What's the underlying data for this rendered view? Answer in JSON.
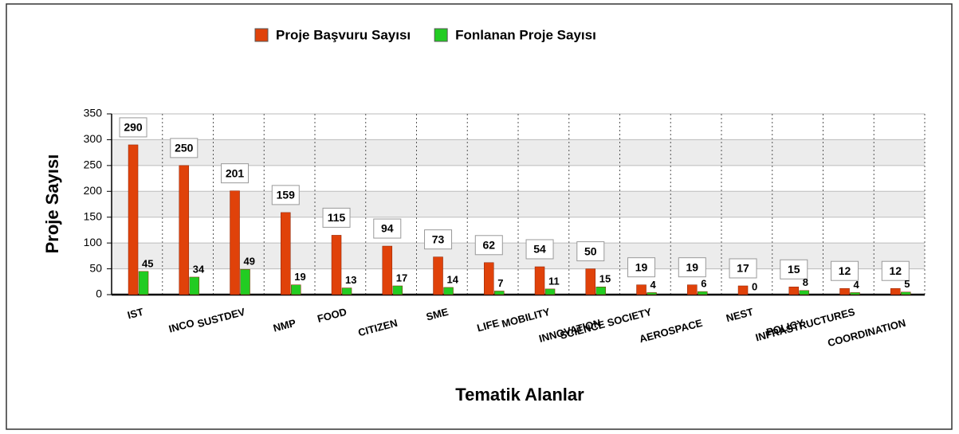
{
  "chart_data": {
    "type": "bar",
    "categories": [
      "IST",
      "INCO",
      "SUSTDEV",
      "NMP",
      "FOOD",
      "CITIZEN",
      "SME",
      "LIFE",
      "MOBILITY",
      "INNOVATION",
      "SCIENCE SOCIETY",
      "AEROSPACE",
      "NEST",
      "POLICY",
      "INFRASTRUCTURES",
      "COORDINATION"
    ],
    "series": [
      {
        "name": "Proje Başvuru Sayısı",
        "color": "#e0420a",
        "values": [
          290,
          250,
          201,
          159,
          115,
          94,
          73,
          62,
          54,
          50,
          19,
          19,
          17,
          15,
          12,
          12
        ]
      },
      {
        "name": "Fonlanan Proje Sayısı",
        "color": "#22cc22",
        "values": [
          45,
          34,
          49,
          19,
          13,
          17,
          14,
          7,
          11,
          15,
          4,
          6,
          0,
          8,
          4,
          5
        ]
      }
    ],
    "y_label": "Proje Sayısı",
    "x_label": "Tematik Alanlar",
    "ylim": [
      0,
      350
    ],
    "yticks": [
      0,
      50,
      100,
      150,
      200,
      250,
      300,
      350
    ],
    "grid": true,
    "legend": "top"
  }
}
